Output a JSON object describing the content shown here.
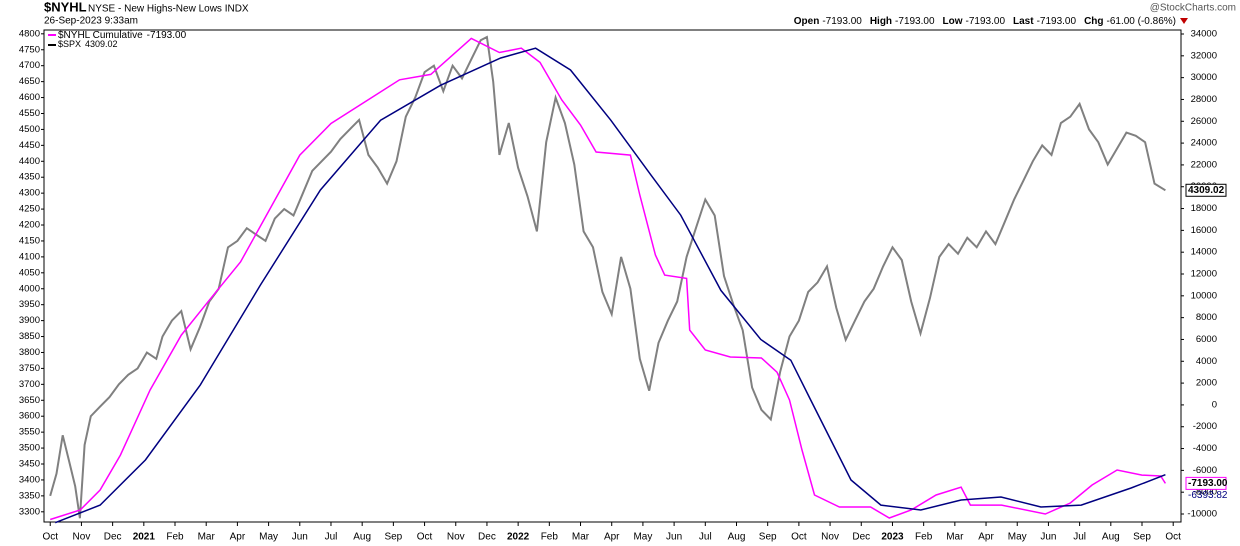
{
  "header": {
    "symbol": "$NYHL",
    "description": "NYSE - New Highs-New Lows INDX",
    "timestamp": "26-Sep-2023 9:33am",
    "source": "@StockCharts.com",
    "quotes": [
      {
        "label": "Open",
        "value": "-7193.00"
      },
      {
        "label": "High",
        "value": "-7193.00"
      },
      {
        "label": "Low",
        "value": "-7193.00"
      },
      {
        "label": "Last",
        "value": "-7193.00"
      },
      {
        "label": "Chg",
        "value": "-61.00 (-0.86%)"
      }
    ]
  },
  "chart_data": {
    "type": "line",
    "xlim": [
      -0.2,
      36.25
    ],
    "xticks": [
      {
        "value": 0,
        "label": "Oct"
      },
      {
        "value": 1,
        "label": "Nov"
      },
      {
        "value": 2,
        "label": "Dec"
      },
      {
        "value": 3,
        "label": "2021"
      },
      {
        "value": 4,
        "label": "Feb"
      },
      {
        "value": 5,
        "label": "Mar"
      },
      {
        "value": 6,
        "label": "Apr"
      },
      {
        "value": 7,
        "label": "May"
      },
      {
        "value": 8,
        "label": "Jun"
      },
      {
        "value": 9,
        "label": "Jul"
      },
      {
        "value": 10,
        "label": "Aug"
      },
      {
        "value": 11,
        "label": "Sep"
      },
      {
        "value": 12,
        "label": "Oct"
      },
      {
        "value": 13,
        "label": "Nov"
      },
      {
        "value": 14,
        "label": "Dec"
      },
      {
        "value": 15,
        "label": "2022"
      },
      {
        "value": 16,
        "label": "Feb"
      },
      {
        "value": 17,
        "label": "Mar"
      },
      {
        "value": 18,
        "label": "Apr"
      },
      {
        "value": 19,
        "label": "May"
      },
      {
        "value": 20,
        "label": "Jun"
      },
      {
        "value": 21,
        "label": "Jul"
      },
      {
        "value": 22,
        "label": "Aug"
      },
      {
        "value": 23,
        "label": "Sep"
      },
      {
        "value": 24,
        "label": "Oct"
      },
      {
        "value": 25,
        "label": "Nov"
      },
      {
        "value": 26,
        "label": "Dec"
      },
      {
        "value": 27,
        "label": "2023"
      },
      {
        "value": 28,
        "label": "Feb"
      },
      {
        "value": 29,
        "label": "Mar"
      },
      {
        "value": 30,
        "label": "Apr"
      },
      {
        "value": 31,
        "label": "May"
      },
      {
        "value": 32,
        "label": "Jun"
      },
      {
        "value": 33,
        "label": "Jul"
      },
      {
        "value": 34,
        "label": "Aug"
      },
      {
        "value": 35,
        "label": "Sep"
      },
      {
        "value": 36,
        "label": "Oct"
      }
    ],
    "ylim": [
      3268,
      4812
    ],
    "yticks": [
      3300,
      3350,
      3400,
      3450,
      3500,
      3550,
      3600,
      3650,
      3700,
      3750,
      3800,
      3850,
      3900,
      3950,
      4000,
      4050,
      4100,
      4150,
      4200,
      4250,
      4300,
      4350,
      4400,
      4450,
      4500,
      4550,
      4600,
      4650,
      4700,
      4750,
      4800
    ],
    "y2lim": [
      -10733,
      34367
    ],
    "y2ticks": [
      -10000,
      -8000,
      -6000,
      -4000,
      -2000,
      0,
      2000,
      4000,
      6000,
      8000,
      10000,
      12000,
      14000,
      16000,
      18000,
      20000,
      22000,
      24000,
      26000,
      28000,
      30000,
      32000,
      34000
    ],
    "grid": false,
    "series": [
      {
        "name": "$SPX",
        "last_label": "4309.02",
        "color": "#808080",
        "legend_color": "#000000",
        "axis": "y",
        "x": [
          0,
          0.2,
          0.4,
          0.6,
          0.8,
          0.95,
          1.1,
          1.3,
          1.6,
          1.9,
          2.2,
          2.5,
          2.8,
          3.1,
          3.4,
          3.6,
          3.9,
          4.2,
          4.5,
          4.8,
          5.1,
          5.4,
          5.7,
          6.0,
          6.3,
          6.6,
          6.9,
          7.2,
          7.5,
          7.8,
          8.1,
          8.4,
          8.7,
          9.0,
          9.3,
          9.6,
          9.9,
          10.2,
          10.5,
          10.8,
          11.1,
          11.4,
          11.7,
          12.0,
          12.3,
          12.6,
          12.9,
          13.2,
          13.5,
          13.8,
          14.0,
          14.2,
          14.4,
          14.7,
          15.0,
          15.3,
          15.6,
          15.9,
          16.2,
          16.5,
          16.8,
          17.1,
          17.4,
          17.7,
          18.0,
          18.3,
          18.6,
          18.9,
          19.2,
          19.5,
          19.8,
          20.1,
          20.4,
          20.7,
          21.0,
          21.3,
          21.6,
          21.9,
          22.2,
          22.5,
          22.8,
          23.1,
          23.4,
          23.7,
          24.0,
          24.3,
          24.6,
          24.9,
          25.2,
          25.5,
          25.8,
          26.1,
          26.4,
          26.7,
          27.0,
          27.3,
          27.6,
          27.9,
          28.2,
          28.5,
          28.8,
          29.1,
          29.4,
          29.7,
          30.0,
          30.3,
          30.6,
          30.9,
          31.2,
          31.5,
          31.8,
          32.1,
          32.4,
          32.7,
          33.0,
          33.3,
          33.6,
          33.9,
          34.2,
          34.5,
          34.8,
          35.1,
          35.4,
          35.75
        ],
        "values": [
          3350,
          3420,
          3540,
          3460,
          3380,
          3280,
          3510,
          3600,
          3630,
          3660,
          3700,
          3730,
          3750,
          3800,
          3780,
          3850,
          3900,
          3930,
          3810,
          3880,
          3960,
          4000,
          4130,
          4150,
          4190,
          4170,
          4150,
          4220,
          4250,
          4230,
          4300,
          4370,
          4400,
          4430,
          4470,
          4500,
          4530,
          4420,
          4380,
          4330,
          4400,
          4540,
          4600,
          4680,
          4700,
          4620,
          4700,
          4660,
          4720,
          4780,
          4790,
          4650,
          4420,
          4520,
          4380,
          4290,
          4180,
          4460,
          4600,
          4520,
          4390,
          4180,
          4130,
          3990,
          3920,
          4100,
          4000,
          3780,
          3680,
          3830,
          3900,
          3960,
          4100,
          4190,
          4280,
          4230,
          4040,
          3950,
          3870,
          3690,
          3620,
          3590,
          3740,
          3850,
          3900,
          3990,
          4020,
          4070,
          3940,
          3840,
          3900,
          3960,
          4000,
          4070,
          4130,
          4090,
          3960,
          3860,
          3970,
          4100,
          4140,
          4110,
          4160,
          4130,
          4180,
          4140,
          4210,
          4280,
          4340,
          4400,
          4450,
          4420,
          4520,
          4540,
          4580,
          4500,
          4460,
          4390,
          4440,
          4490,
          4480,
          4460,
          4330,
          4309.02
        ]
      },
      {
        "name": "$NYHL Cumulative",
        "last_label": "-7193.00",
        "color": "#ff00ff",
        "axis": "y2",
        "x": [
          0,
          0.96,
          1.6,
          2.25,
          3.2,
          4.2,
          5.1,
          6.1,
          8.0,
          9.0,
          11.2,
          12.2,
          13.5,
          14.4,
          15.1,
          15.7,
          16.4,
          17.0,
          17.5,
          18.6,
          18.9,
          19.4,
          19.7,
          20.4,
          20.5,
          21.0,
          21.8,
          22.8,
          23.3,
          23.7,
          24.1,
          24.5,
          25.3,
          26.3,
          26.9,
          27.6,
          28.4,
          29.2,
          29.5,
          30.5,
          31.9,
          32.7,
          33.4,
          34.2,
          35.0,
          35.6,
          35.75
        ],
        "values": [
          -10500,
          -9630,
          -7800,
          -4600,
          1370,
          6400,
          9600,
          13100,
          22900,
          25800,
          29800,
          30300,
          33600,
          32300,
          32700,
          31400,
          27950,
          25660,
          23180,
          22900,
          19240,
          13740,
          11900,
          11600,
          6860,
          5030,
          4390,
          4300,
          3000,
          450,
          -4130,
          -8260,
          -9360,
          -9360,
          -10370,
          -9630,
          -8260,
          -7530,
          -9180,
          -9180,
          -10000,
          -8990,
          -7340,
          -5970,
          -6430,
          -6520,
          -7193
        ]
      },
      {
        "last_label": "-6393.82",
        "color": "#000080",
        "axis": "y2",
        "x": [
          0.16,
          1.6,
          3.05,
          4.81,
          6.74,
          8.66,
          10.59,
          12.51,
          14.44,
          15.56,
          16.68,
          17.97,
          19.25,
          20.21,
          21.5,
          22.78,
          23.74,
          24.38,
          25.67,
          26.63,
          27.91,
          29.2,
          30.48,
          31.76,
          33.05,
          34.65,
          35.75
        ],
        "values": [
          -10800,
          -9180,
          -5050,
          1830,
          11000,
          19700,
          26100,
          29300,
          31800,
          32700,
          30700,
          26100,
          21100,
          17400,
          10500,
          6000,
          4100,
          450,
          -6880,
          -9180,
          -9630,
          -8720,
          -8440,
          -9360,
          -9180,
          -7620,
          -6393.82
        ]
      }
    ]
  }
}
